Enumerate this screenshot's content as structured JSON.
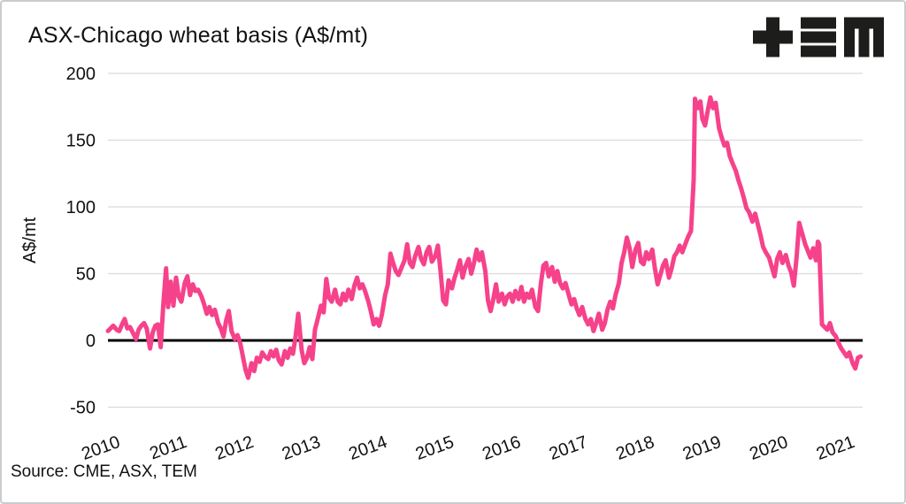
{
  "header": {
    "title": "ASX-Chicago wheat basis (A$/mt)"
  },
  "logo": {
    "name": "TEM",
    "color": "#1d1d1b"
  },
  "footer": {
    "source": "Source: CME, ASX, TEM"
  },
  "chart_data": {
    "type": "line",
    "title": "ASX-Chicago wheat basis (A$/mt)",
    "xlabel": "",
    "ylabel": "A$/mt",
    "ylim": [
      -50,
      200
    ],
    "xlim": [
      2010,
      2021.3
    ],
    "y_ticks": [
      200,
      150,
      100,
      50,
      0,
      -50
    ],
    "x_ticks": [
      2010,
      2011,
      2012,
      2013,
      2014,
      2015,
      2016,
      2017,
      2018,
      2019,
      2020,
      2021
    ],
    "grid": "horizontal-gridlines",
    "legend": "none",
    "zero_baseline": true,
    "colors": {
      "line": "#F6428A",
      "grid": "#DBDBDB",
      "zero_line": "#000000",
      "text": "#111111"
    },
    "series": [
      {
        "name": "ASX-Chicago wheat basis (A$/mt)",
        "points": [
          [
            2010.0,
            7
          ],
          [
            2010.04,
            9
          ],
          [
            2010.08,
            11
          ],
          [
            2010.13,
            8
          ],
          [
            2010.17,
            7
          ],
          [
            2010.21,
            12
          ],
          [
            2010.25,
            16
          ],
          [
            2010.29,
            9
          ],
          [
            2010.33,
            10
          ],
          [
            2010.38,
            5
          ],
          [
            2010.42,
            1
          ],
          [
            2010.46,
            8
          ],
          [
            2010.5,
            11
          ],
          [
            2010.54,
            13
          ],
          [
            2010.58,
            9
          ],
          [
            2010.63,
            -6
          ],
          [
            2010.67,
            6
          ],
          [
            2010.71,
            11
          ],
          [
            2010.75,
            12
          ],
          [
            2010.79,
            -5
          ],
          [
            2010.83,
            28
          ],
          [
            2010.87,
            54
          ],
          [
            2010.9,
            25
          ],
          [
            2010.94,
            44
          ],
          [
            2010.98,
            26
          ],
          [
            2011.02,
            47
          ],
          [
            2011.06,
            33
          ],
          [
            2011.1,
            29
          ],
          [
            2011.15,
            43
          ],
          [
            2011.19,
            48
          ],
          [
            2011.23,
            34
          ],
          [
            2011.27,
            42
          ],
          [
            2011.31,
            37
          ],
          [
            2011.35,
            38
          ],
          [
            2011.4,
            33
          ],
          [
            2011.44,
            27
          ],
          [
            2011.48,
            20
          ],
          [
            2011.52,
            25
          ],
          [
            2011.56,
            19
          ],
          [
            2011.6,
            23
          ],
          [
            2011.65,
            13
          ],
          [
            2011.69,
            9
          ],
          [
            2011.73,
            3
          ],
          [
            2011.77,
            15
          ],
          [
            2011.81,
            22
          ],
          [
            2011.85,
            7
          ],
          [
            2011.9,
            1
          ],
          [
            2011.94,
            4
          ],
          [
            2011.98,
            -2
          ],
          [
            2012.02,
            -12
          ],
          [
            2012.06,
            -22
          ],
          [
            2012.1,
            -28
          ],
          [
            2012.15,
            -17
          ],
          [
            2012.19,
            -23
          ],
          [
            2012.23,
            -13
          ],
          [
            2012.27,
            -16
          ],
          [
            2012.31,
            -9
          ],
          [
            2012.35,
            -12
          ],
          [
            2012.4,
            -14
          ],
          [
            2012.44,
            -8
          ],
          [
            2012.48,
            -12
          ],
          [
            2012.52,
            -7
          ],
          [
            2012.56,
            -15
          ],
          [
            2012.6,
            -18
          ],
          [
            2012.65,
            -8
          ],
          [
            2012.69,
            -13
          ],
          [
            2012.73,
            -6
          ],
          [
            2012.77,
            -10
          ],
          [
            2012.81,
            3
          ],
          [
            2012.85,
            20
          ],
          [
            2012.9,
            -7
          ],
          [
            2012.94,
            -17
          ],
          [
            2012.98,
            -13
          ],
          [
            2013.02,
            -5
          ],
          [
            2013.06,
            -14
          ],
          [
            2013.1,
            8
          ],
          [
            2013.15,
            18
          ],
          [
            2013.19,
            26
          ],
          [
            2013.23,
            21
          ],
          [
            2013.27,
            46
          ],
          [
            2013.31,
            32
          ],
          [
            2013.35,
            29
          ],
          [
            2013.4,
            38
          ],
          [
            2013.44,
            29
          ],
          [
            2013.48,
            27
          ],
          [
            2013.52,
            35
          ],
          [
            2013.56,
            30
          ],
          [
            2013.6,
            38
          ],
          [
            2013.65,
            31
          ],
          [
            2013.69,
            41
          ],
          [
            2013.73,
            47
          ],
          [
            2013.77,
            39
          ],
          [
            2013.81,
            42
          ],
          [
            2013.85,
            37
          ],
          [
            2013.9,
            29
          ],
          [
            2013.94,
            21
          ],
          [
            2013.98,
            12
          ],
          [
            2014.02,
            16
          ],
          [
            2014.06,
            11
          ],
          [
            2014.1,
            19
          ],
          [
            2014.15,
            34
          ],
          [
            2014.19,
            42
          ],
          [
            2014.23,
            65
          ],
          [
            2014.27,
            58
          ],
          [
            2014.31,
            52
          ],
          [
            2014.35,
            49
          ],
          [
            2014.4,
            55
          ],
          [
            2014.44,
            60
          ],
          [
            2014.48,
            72
          ],
          [
            2014.52,
            58
          ],
          [
            2014.56,
            55
          ],
          [
            2014.6,
            63
          ],
          [
            2014.65,
            70
          ],
          [
            2014.69,
            61
          ],
          [
            2014.73,
            57
          ],
          [
            2014.77,
            66
          ],
          [
            2014.81,
            70
          ],
          [
            2014.85,
            59
          ],
          [
            2014.9,
            63
          ],
          [
            2014.94,
            71
          ],
          [
            2014.98,
            52
          ],
          [
            2015.02,
            30
          ],
          [
            2015.06,
            27
          ],
          [
            2015.1,
            45
          ],
          [
            2015.15,
            39
          ],
          [
            2015.19,
            47
          ],
          [
            2015.23,
            53
          ],
          [
            2015.27,
            60
          ],
          [
            2015.31,
            47
          ],
          [
            2015.35,
            55
          ],
          [
            2015.4,
            61
          ],
          [
            2015.44,
            50
          ],
          [
            2015.48,
            58
          ],
          [
            2015.52,
            68
          ],
          [
            2015.56,
            60
          ],
          [
            2015.6,
            66
          ],
          [
            2015.65,
            52
          ],
          [
            2015.69,
            30
          ],
          [
            2015.73,
            22
          ],
          [
            2015.77,
            31
          ],
          [
            2015.81,
            42
          ],
          [
            2015.85,
            29
          ],
          [
            2015.9,
            35
          ],
          [
            2015.94,
            27
          ],
          [
            2015.98,
            33
          ],
          [
            2016.02,
            35
          ],
          [
            2016.06,
            29
          ],
          [
            2016.1,
            37
          ],
          [
            2016.15,
            31
          ],
          [
            2016.19,
            40
          ],
          [
            2016.23,
            29
          ],
          [
            2016.27,
            35
          ],
          [
            2016.31,
            32
          ],
          [
            2016.35,
            38
          ],
          [
            2016.4,
            25
          ],
          [
            2016.44,
            22
          ],
          [
            2016.48,
            42
          ],
          [
            2016.52,
            56
          ],
          [
            2016.56,
            58
          ],
          [
            2016.6,
            48
          ],
          [
            2016.65,
            55
          ],
          [
            2016.69,
            44
          ],
          [
            2016.73,
            52
          ],
          [
            2016.77,
            43
          ],
          [
            2016.81,
            39
          ],
          [
            2016.85,
            43
          ],
          [
            2016.9,
            34
          ],
          [
            2016.94,
            27
          ],
          [
            2016.98,
            31
          ],
          [
            2017.02,
            24
          ],
          [
            2017.06,
            19
          ],
          [
            2017.1,
            25
          ],
          [
            2017.15,
            16
          ],
          [
            2017.19,
            12
          ],
          [
            2017.23,
            16
          ],
          [
            2017.27,
            7
          ],
          [
            2017.31,
            13
          ],
          [
            2017.35,
            20
          ],
          [
            2017.4,
            8
          ],
          [
            2017.44,
            13
          ],
          [
            2017.48,
            23
          ],
          [
            2017.52,
            29
          ],
          [
            2017.56,
            24
          ],
          [
            2017.6,
            34
          ],
          [
            2017.65,
            43
          ],
          [
            2017.69,
            58
          ],
          [
            2017.73,
            66
          ],
          [
            2017.77,
            77
          ],
          [
            2017.81,
            69
          ],
          [
            2017.85,
            55
          ],
          [
            2017.9,
            68
          ],
          [
            2017.94,
            73
          ],
          [
            2017.98,
            59
          ],
          [
            2018.02,
            57
          ],
          [
            2018.06,
            66
          ],
          [
            2018.1,
            61
          ],
          [
            2018.15,
            68
          ],
          [
            2018.19,
            54
          ],
          [
            2018.23,
            42
          ],
          [
            2018.27,
            49
          ],
          [
            2018.31,
            56
          ],
          [
            2018.35,
            60
          ],
          [
            2018.4,
            47
          ],
          [
            2018.44,
            54
          ],
          [
            2018.48,
            63
          ],
          [
            2018.52,
            66
          ],
          [
            2018.56,
            71
          ],
          [
            2018.6,
            66
          ],
          [
            2018.65,
            73
          ],
          [
            2018.69,
            78
          ],
          [
            2018.73,
            82
          ],
          [
            2018.77,
            120
          ],
          [
            2018.79,
            181
          ],
          [
            2018.83,
            174
          ],
          [
            2018.87,
            179
          ],
          [
            2018.9,
            166
          ],
          [
            2018.94,
            161
          ],
          [
            2018.98,
            172
          ],
          [
            2019.02,
            182
          ],
          [
            2019.06,
            174
          ],
          [
            2019.1,
            178
          ],
          [
            2019.15,
            159
          ],
          [
            2019.19,
            152
          ],
          [
            2019.23,
            146
          ],
          [
            2019.27,
            148
          ],
          [
            2019.31,
            138
          ],
          [
            2019.35,
            133
          ],
          [
            2019.4,
            127
          ],
          [
            2019.44,
            120
          ],
          [
            2019.48,
            114
          ],
          [
            2019.52,
            107
          ],
          [
            2019.56,
            99
          ],
          [
            2019.6,
            96
          ],
          [
            2019.65,
            89
          ],
          [
            2019.69,
            95
          ],
          [
            2019.73,
            87
          ],
          [
            2019.77,
            79
          ],
          [
            2019.81,
            70
          ],
          [
            2019.85,
            66
          ],
          [
            2019.9,
            62
          ],
          [
            2019.94,
            55
          ],
          [
            2019.98,
            48
          ],
          [
            2020.02,
            61
          ],
          [
            2020.06,
            66
          ],
          [
            2020.1,
            58
          ],
          [
            2020.15,
            64
          ],
          [
            2020.19,
            56
          ],
          [
            2020.23,
            51
          ],
          [
            2020.27,
            41
          ],
          [
            2020.31,
            62
          ],
          [
            2020.35,
            88
          ],
          [
            2020.4,
            79
          ],
          [
            2020.44,
            72
          ],
          [
            2020.48,
            67
          ],
          [
            2020.52,
            62
          ],
          [
            2020.56,
            69
          ],
          [
            2020.6,
            60
          ],
          [
            2020.63,
            74
          ],
          [
            2020.65,
            72
          ],
          [
            2020.69,
            12
          ],
          [
            2020.73,
            10
          ],
          [
            2020.77,
            8
          ],
          [
            2020.81,
            13
          ],
          [
            2020.85,
            6
          ],
          [
            2020.9,
            3
          ],
          [
            2020.94,
            -2
          ],
          [
            2020.98,
            -6
          ],
          [
            2021.02,
            -9
          ],
          [
            2021.06,
            -12
          ],
          [
            2021.1,
            -9
          ],
          [
            2021.15,
            -17
          ],
          [
            2021.19,
            -21
          ],
          [
            2021.23,
            -13
          ],
          [
            2021.27,
            -12
          ]
        ]
      }
    ]
  }
}
